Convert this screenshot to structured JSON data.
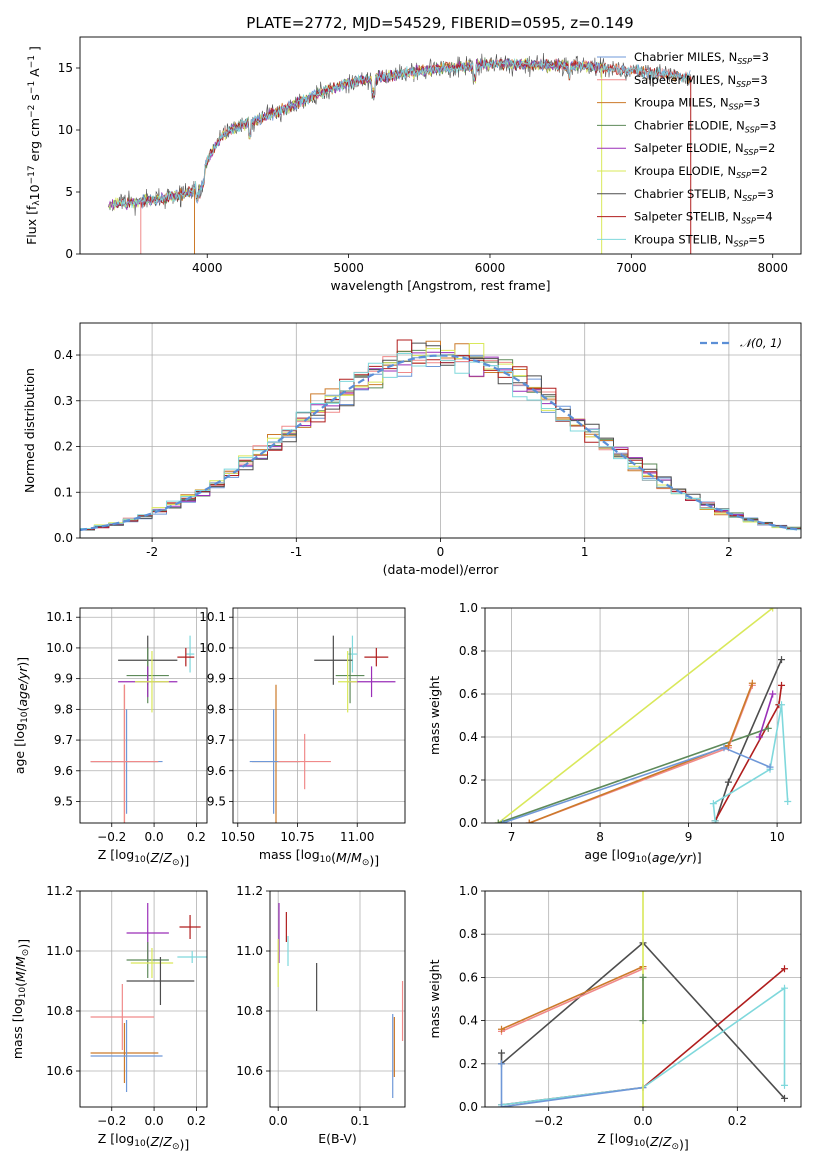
{
  "title": "PLATE=2772, MJD=54529, FIBERID=0595, z=0.149",
  "colors": {
    "Chabrier MILES": "#6f98d8",
    "Salpeter MILES": "#f08a8a",
    "Kroupa MILES": "#cc7a2a",
    "Chabrier ELODIE": "#5e8a5a",
    "Salpeter ELODIE": "#9a2fb8",
    "Kroupa ELODIE": "#d9e85a",
    "Chabrier STELIB": "#4d4d4d",
    "Salpeter STELIB": "#b01e1e",
    "Kroupa STELIB": "#7fd8dc"
  },
  "chart_data": [
    {
      "id": "spectrum",
      "type": "line",
      "xlabel": "wavelength [Angstrom, rest frame]",
      "ylabel": "Flux [f_λ10^-17 erg cm^-2 s^-1 A^-1]",
      "xlim": [
        3100,
        8200
      ],
      "ylim": [
        0,
        17.5
      ],
      "xticks": [
        4000,
        5000,
        6000,
        7000,
        8000
      ],
      "yticks": [
        0,
        5,
        10,
        15
      ],
      "grid": false,
      "legend_position": "top-right",
      "legend": [
        {
          "name": "Chabrier MILES",
          "nssp": "3"
        },
        {
          "name": "Salpeter MILES",
          "nssp": "3"
        },
        {
          "name": "Kroupa MILES",
          "nssp": "3"
        },
        {
          "name": "Chabrier ELODIE",
          "nssp": "3"
        },
        {
          "name": "Salpeter ELODIE",
          "nssp": "2"
        },
        {
          "name": "Kroupa ELODIE",
          "nssp": "2"
        },
        {
          "name": "Chabrier STELIB",
          "nssp": "3"
        },
        {
          "name": "Salpeter STELIB",
          "nssp": "4"
        },
        {
          "name": "Kroupa STELIB",
          "nssp": "5"
        }
      ],
      "continuum": {
        "x": [
          3300,
          3500,
          3700,
          3900,
          4000,
          4100,
          4200,
          4400,
          4600,
          4800,
          5000,
          5200,
          5400,
          5600,
          5800,
          6000,
          6200,
          6400,
          6600,
          6800,
          7000,
          7200,
          7400
        ],
        "y": [
          4.0,
          4.2,
          4.5,
          5.0,
          7.5,
          9.5,
          10.2,
          11.0,
          12.0,
          13.0,
          13.8,
          14.2,
          14.6,
          14.9,
          15.1,
          15.3,
          15.3,
          15.2,
          15.2,
          15.0,
          14.8,
          14.5,
          14.3
        ]
      },
      "dropouts": [
        {
          "series": "Salpeter MILES",
          "x": 3530
        },
        {
          "series": "Kroupa MILES",
          "x": 3910
        },
        {
          "series": "Kroupa ELODIE",
          "x": 6790
        },
        {
          "series": "Salpeter STELIB",
          "x": 7420
        }
      ]
    },
    {
      "id": "residuals",
      "type": "line",
      "xlabel": "(data-model)/error",
      "ylabel": "Normed distribution",
      "xlim": [
        -2.5,
        2.5
      ],
      "ylim": [
        0,
        0.47
      ],
      "xticks": [
        -2,
        -1,
        0,
        1,
        2
      ],
      "yticks": [
        0.0,
        0.1,
        0.2,
        0.3,
        0.4
      ],
      "grid": true,
      "legend_position": "top-right",
      "legend_label": "𝒩(0, 1)",
      "bin_width": 0.1
    },
    {
      "id": "age-vs-Z",
      "type": "scatter",
      "xlabel": "Z [log10(Z/Z⊙)]",
      "ylabel": "age [log10(age/yr)]",
      "xlim": [
        -0.35,
        0.25
      ],
      "ylim": [
        9.43,
        10.13
      ],
      "xticks": [
        -0.2,
        0.0,
        0.2
      ],
      "xtick_labels": [
        "−0.2",
        "0.0",
        "0.2"
      ],
      "yticks": [
        9.5,
        9.6,
        9.7,
        9.8,
        9.9,
        10.0,
        10.1
      ],
      "grid": true,
      "points": [
        {
          "series": "Kroupa STELIB",
          "x": 0.17,
          "y": 9.98,
          "xerr": 0.02,
          "yerr": 0.06
        },
        {
          "series": "Chabrier STELIB",
          "x": -0.03,
          "y": 9.96,
          "xerr": 0.14,
          "yerr": 0.08
        },
        {
          "series": "Salpeter STELIB",
          "x": 0.15,
          "y": 9.97,
          "xerr": 0.04,
          "yerr": 0.03
        },
        {
          "series": "Chabrier ELODIE",
          "x": -0.03,
          "y": 9.91,
          "xerr": 0.1,
          "yerr": 0.09
        },
        {
          "series": "Salpeter ELODIE",
          "x": -0.03,
          "y": 9.89,
          "xerr": 0.14,
          "yerr": 0.05
        },
        {
          "series": "Kroupa ELODIE",
          "x": -0.01,
          "y": 9.89,
          "xerr": 0.08,
          "yerr": 0.1
        },
        {
          "series": "Kroupa MILES",
          "x": -0.14,
          "y": 9.63,
          "xerr": 0.16,
          "yerr": 0.25
        },
        {
          "series": "Chabrier MILES",
          "x": -0.13,
          "y": 9.63,
          "xerr": 0.17,
          "yerr": 0.17
        },
        {
          "series": "Salpeter MILES",
          "x": -0.14,
          "y": 9.63,
          "xerr": 0.16,
          "yerr": 0.25
        }
      ]
    },
    {
      "id": "age-vs-mass",
      "type": "scatter",
      "xlabel": "mass [log10(M/M⊙)]",
      "ylabel": "",
      "xlim": [
        10.48,
        11.2
      ],
      "ylim": [
        9.43,
        10.13
      ],
      "xticks": [
        10.5,
        10.75,
        11.0
      ],
      "xtick_labels": [
        "10.50",
        "10.75",
        "11.00"
      ],
      "yticks": [
        9.5,
        9.6,
        9.7,
        9.8,
        9.9,
        10.0,
        10.1
      ],
      "grid": true,
      "points": [
        {
          "series": "Kroupa STELIB",
          "x": 10.98,
          "y": 9.98,
          "xerr": 0.02,
          "yerr": 0.06
        },
        {
          "series": "Chabrier STELIB",
          "x": 10.9,
          "y": 9.96,
          "xerr": 0.08,
          "yerr": 0.08
        },
        {
          "series": "Salpeter STELIB",
          "x": 11.08,
          "y": 9.97,
          "xerr": 0.05,
          "yerr": 0.03
        },
        {
          "series": "Chabrier ELODIE",
          "x": 10.97,
          "y": 9.91,
          "xerr": 0.06,
          "yerr": 0.09
        },
        {
          "series": "Salpeter ELODIE",
          "x": 11.06,
          "y": 9.89,
          "xerr": 0.1,
          "yerr": 0.05
        },
        {
          "series": "Kroupa ELODIE",
          "x": 10.96,
          "y": 9.89,
          "xerr": 0.04,
          "yerr": 0.1
        },
        {
          "series": "Kroupa MILES",
          "x": 10.66,
          "y": 9.63,
          "xerr": 0.1,
          "yerr": 0.25
        },
        {
          "series": "Chabrier MILES",
          "x": 10.65,
          "y": 9.63,
          "xerr": 0.1,
          "yerr": 0.17
        },
        {
          "series": "Salpeter MILES",
          "x": 10.78,
          "y": 9.63,
          "xerr": 0.11,
          "yerr": 0.09
        }
      ]
    },
    {
      "id": "weight-vs-age",
      "type": "line",
      "xlabel": "age [log10(age/yr)]",
      "ylabel": "mass weight",
      "xlim": [
        6.7,
        10.27
      ],
      "ylim": [
        0,
        1.0
      ],
      "xticks": [
        7,
        8,
        9,
        10
      ],
      "yticks": [
        0.0,
        0.2,
        0.4,
        0.6,
        0.8,
        1.0
      ],
      "grid": true,
      "series": [
        {
          "name": "Chabrier STELIB",
          "x": [
            9.3,
            9.45,
            10.05
          ],
          "y": [
            0.0,
            0.19,
            0.76
          ]
        },
        {
          "name": "Salpeter STELIB",
          "x": [
            9.3,
            10.02,
            10.05
          ],
          "y": [
            0.01,
            0.55,
            0.64
          ]
        },
        {
          "name": "Kroupa STELIB",
          "x": [
            9.3,
            9.28,
            9.92,
            10.05,
            10.12
          ],
          "y": [
            0.01,
            0.09,
            0.25,
            0.55,
            0.1
          ]
        },
        {
          "name": "Kroupa ELODIE",
          "x": [
            6.85,
            9.95
          ],
          "y": [
            0.0,
            1.0
          ]
        },
        {
          "name": "Chabrier ELODIE",
          "x": [
            6.85,
            9.9
          ],
          "y": [
            0.0,
            0.44
          ]
        },
        {
          "name": "Salpeter ELODIE",
          "x": [
            9.8,
            9.95
          ],
          "y": [
            0.4,
            0.6
          ]
        },
        {
          "name": "Salpeter MILES",
          "x": [
            7.2,
            9.45,
            9.72
          ],
          "y": [
            0.0,
            0.35,
            0.64
          ]
        },
        {
          "name": "Kroupa MILES",
          "x": [
            7.2,
            9.45,
            9.72
          ],
          "y": [
            0.0,
            0.36,
            0.65
          ]
        },
        {
          "name": "Chabrier MILES",
          "x": [
            6.9,
            9.4,
            9.92
          ],
          "y": [
            0.0,
            0.35,
            0.26
          ]
        }
      ]
    },
    {
      "id": "mass-vs-Z",
      "type": "scatter",
      "xlabel": "Z [log10(Z/Z⊙)]",
      "ylabel": "mass [log10(M/M⊙)]",
      "xlim": [
        -0.35,
        0.25
      ],
      "ylim": [
        10.48,
        11.2
      ],
      "xticks": [
        -0.2,
        0.0,
        0.2
      ],
      "xtick_labels": [
        "−0.2",
        "0.0",
        "0.2"
      ],
      "yticks": [
        10.6,
        10.8,
        11.0,
        11.2
      ],
      "grid": true,
      "points": [
        {
          "series": "Salpeter STELIB",
          "x": 0.17,
          "y": 11.08,
          "xerr": 0.05,
          "yerr": 0.04
        },
        {
          "series": "Salpeter ELODIE",
          "x": -0.03,
          "y": 11.06,
          "xerr": 0.1,
          "yerr": 0.1
        },
        {
          "series": "Kroupa STELIB",
          "x": 0.18,
          "y": 10.98,
          "xerr": 0.07,
          "yerr": 0.02
        },
        {
          "series": "Chabrier ELODIE",
          "x": -0.03,
          "y": 10.97,
          "xerr": 0.1,
          "yerr": 0.06
        },
        {
          "series": "Kroupa ELODIE",
          "x": -0.01,
          "y": 10.96,
          "xerr": 0.1,
          "yerr": 0.05
        },
        {
          "series": "Chabrier STELIB",
          "x": 0.03,
          "y": 10.9,
          "xerr": 0.16,
          "yerr": 0.08
        },
        {
          "series": "Salpeter MILES",
          "x": -0.15,
          "y": 10.78,
          "xerr": 0.15,
          "yerr": 0.11
        },
        {
          "series": "Kroupa MILES",
          "x": -0.14,
          "y": 10.66,
          "xerr": 0.16,
          "yerr": 0.1
        },
        {
          "series": "Chabrier MILES",
          "x": -0.13,
          "y": 10.65,
          "xerr": 0.17,
          "yerr": 0.12
        }
      ]
    },
    {
      "id": "mass-vs-ebv",
      "type": "scatter",
      "xlabel": "E(B-V)",
      "ylabel": "",
      "xlim": [
        -0.01,
        0.155
      ],
      "ylim": [
        10.48,
        11.2
      ],
      "xticks": [
        0.0,
        0.1
      ],
      "xtick_labels": [
        "0.0",
        "0.1"
      ],
      "yticks": [
        10.6,
        10.8,
        11.0,
        11.2
      ],
      "grid": true,
      "points": [
        {
          "series": "Salpeter ELODIE",
          "x": 0.001,
          "y": 11.06,
          "yerr": 0.1
        },
        {
          "series": "Kroupa ELODIE",
          "x": 0.0,
          "y": 10.96,
          "yerr": 0.08
        },
        {
          "series": "Salpeter STELIB",
          "x": 0.01,
          "y": 11.08,
          "yerr": 0.05
        },
        {
          "series": "Kroupa STELIB",
          "x": 0.012,
          "y": 11.0,
          "yerr": 0.05
        },
        {
          "series": "Chabrier STELIB",
          "x": 0.047,
          "y": 10.88,
          "yerr": 0.08
        },
        {
          "series": "Chabrier MILES",
          "x": 0.14,
          "y": 10.65,
          "yerr": 0.14
        },
        {
          "series": "Kroupa MILES",
          "x": 0.142,
          "y": 10.68,
          "yerr": 0.1
        },
        {
          "series": "Salpeter MILES",
          "x": 0.152,
          "y": 10.8,
          "yerr": 0.1
        }
      ]
    },
    {
      "id": "weight-vs-Z",
      "type": "line",
      "xlabel": "Z [log10(Z/Z⊙)]",
      "ylabel": "mass weight",
      "xlim": [
        -0.335,
        0.335
      ],
      "ylim": [
        0,
        1.0
      ],
      "xticks": [
        -0.2,
        0.0,
        0.2
      ],
      "xtick_labels": [
        "−0.2",
        "0.0",
        "0.2"
      ],
      "yticks": [
        0.0,
        0.2,
        0.4,
        0.6,
        0.8,
        1.0
      ],
      "grid": true,
      "series": [
        {
          "name": "Chabrier STELIB",
          "x": [
            -0.3,
            -0.3,
            0.0,
            0.3
          ],
          "y": [
            0.25,
            0.2,
            0.76,
            0.04
          ]
        },
        {
          "name": "Salpeter STELIB",
          "x": [
            -0.3,
            0.0,
            0.3
          ],
          "y": [
            0.01,
            0.09,
            0.64
          ]
        },
        {
          "name": "Kroupa STELIB",
          "x": [
            -0.3,
            0.0,
            0.3,
            0.3
          ],
          "y": [
            0.01,
            0.09,
            0.55,
            0.1
          ]
        },
        {
          "name": "Chabrier MILES",
          "x": [
            -0.3,
            -0.3,
            0.0
          ],
          "y": [
            0.2,
            0.0,
            0.09
          ]
        },
        {
          "name": "Salpeter MILES",
          "x": [
            -0.3,
            0.0
          ],
          "y": [
            0.35,
            0.64
          ]
        },
        {
          "name": "Kroupa MILES",
          "x": [
            -0.3,
            0.0
          ],
          "y": [
            0.36,
            0.65
          ]
        },
        {
          "name": "Kroupa ELODIE",
          "x": [
            0.0,
            0.0
          ],
          "y": [
            0.0,
            1.0
          ]
        },
        {
          "name": "Chabrier ELODIE",
          "x": [
            0.0,
            0.0
          ],
          "y": [
            0.4,
            0.6
          ]
        }
      ]
    }
  ]
}
